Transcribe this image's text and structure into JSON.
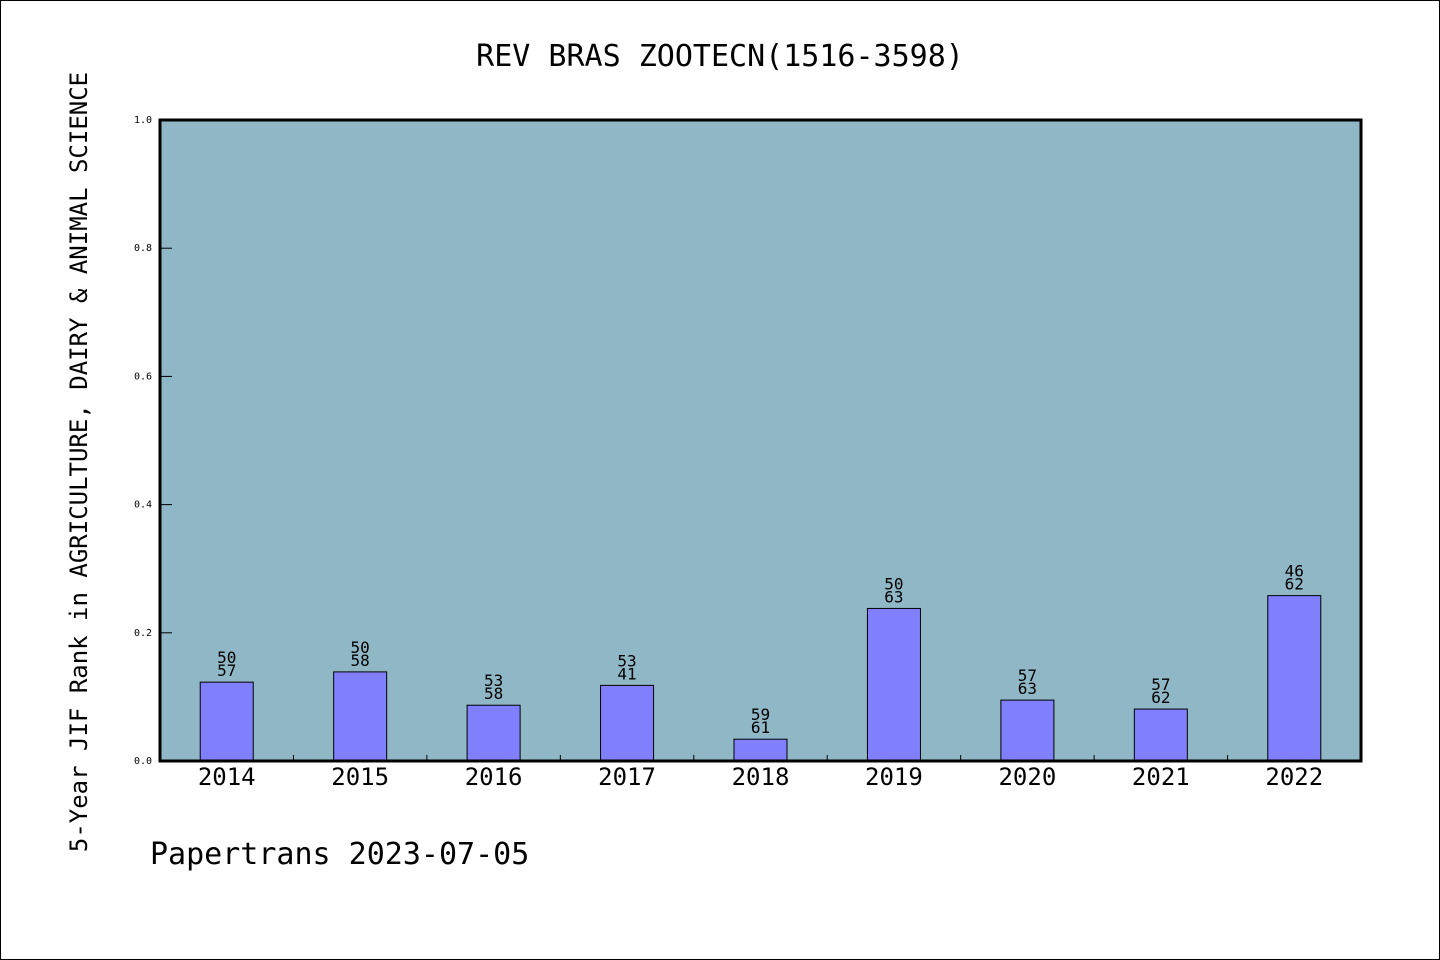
{
  "footer": "Papertrans 2023-07-05",
  "colors": {
    "plot_background": "#8fb7c5",
    "bar_fill": "#8080ff",
    "bar_stroke": "#000000",
    "axis": "#000000"
  },
  "chart_data": {
    "type": "bar",
    "title": "REV BRAS ZOOTECN(1516-3598)",
    "xlabel": "",
    "ylabel": "5-Year JIF Rank in AGRICULTURE, DAIRY & ANIMAL SCIENCE",
    "ylim": [
      0,
      1.0
    ],
    "yticks": [
      "0.0",
      "0.2",
      "0.4",
      "0.6",
      "0.8",
      "1.0"
    ],
    "categories": [
      "2014",
      "2015",
      "2016",
      "2017",
      "2018",
      "2019",
      "2020",
      "2021",
      "2022"
    ],
    "values": [
      0.123,
      0.139,
      0.087,
      0.118,
      0.034,
      0.238,
      0.095,
      0.081,
      0.258
    ],
    "labels_top": [
      "50",
      "50",
      "53",
      "53",
      "59",
      "50",
      "57",
      "57",
      "46"
    ],
    "labels_bottom": [
      "57",
      "58",
      "58",
      "41",
      "61",
      "63",
      "63",
      "62",
      "62"
    ],
    "grid": false,
    "legend": "none"
  }
}
